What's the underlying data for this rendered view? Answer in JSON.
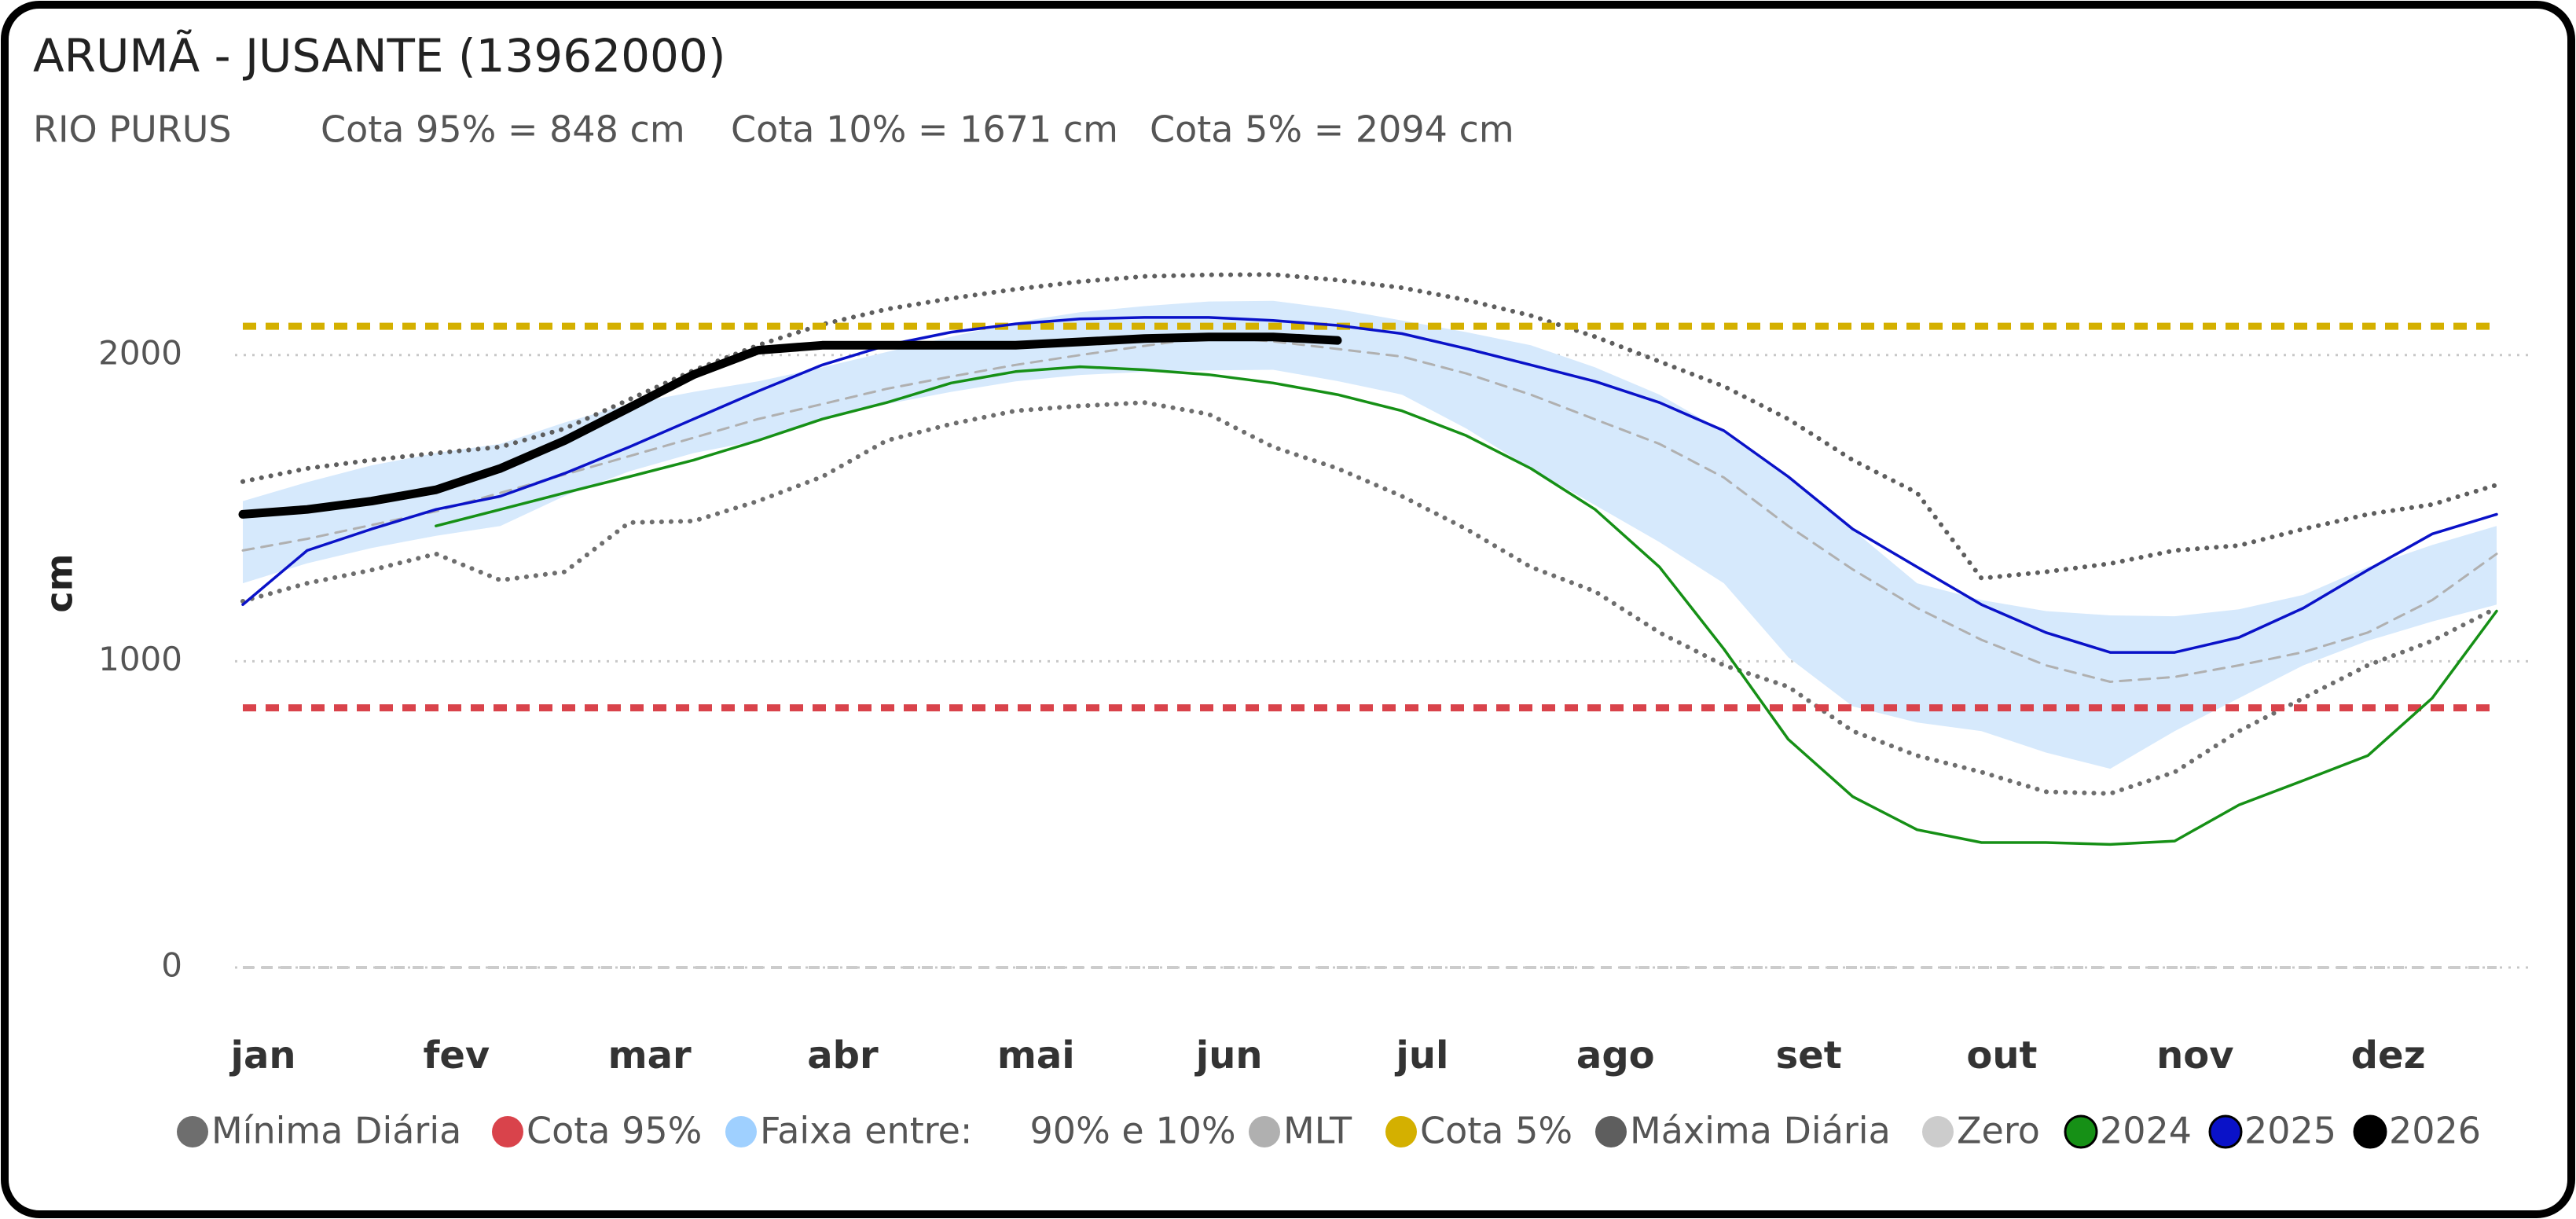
{
  "chart_data": {
    "type": "line",
    "title": "ARUMÃ - JUSANTE (13962000)",
    "subtitle": [
      "RIO PURUS",
      "Cota 95% = 848 cm",
      "Cota 10% = 1671 cm",
      "Cota 5% = 2094 cm"
    ],
    "y_label": "cm",
    "categories": [
      "jan",
      null,
      null,
      "fev",
      null,
      null,
      "mar",
      null,
      null,
      "abr",
      null,
      null,
      "mai",
      null,
      null,
      "jun",
      null,
      null,
      "jul",
      null,
      null,
      "ago",
      null,
      null,
      "set",
      null,
      null,
      "out",
      null,
      null,
      "nov",
      null,
      null,
      "dez",
      null,
      null
    ],
    "ylim": [
      0,
      2500
    ],
    "yticks": [
      0,
      1000,
      2000
    ],
    "grid": true,
    "series": [
      {
        "name": "Mínima Diária",
        "color": "#6e6e6e",
        "line_style": "dotted",
        "line_width": 6,
        "values": [
          1196,
          1255,
          1298,
          1351,
          1265,
          1292,
          1453,
          1458,
          1523,
          1603,
          1721,
          1775,
          1818,
          1834,
          1845,
          1807,
          1700,
          1630,
          1539,
          1432,
          1308,
          1228,
          1094,
          987,
          917,
          772,
          692,
          638,
          574,
          568,
          638,
          772,
          880,
          987,
          1067,
          1174
        ]
      },
      {
        "name": "Cota 95%",
        "color": "#d9434b",
        "line_style": "dashed",
        "line_width": 9,
        "value": 848
      },
      {
        "name": "Faixa entre:     90% e 10%",
        "color": "#d6e9fc",
        "line_style": "band",
        "line_width": 0,
        "high": [
          1523,
          1585,
          1640,
          1680,
          1710,
          1780,
          1840,
          1880,
          1914,
          1960,
          2010,
          2060,
          2107,
          2140,
          2160,
          2175,
          2177,
          2150,
          2113,
          2075,
          2032,
          1960,
          1871,
          1750,
          1603,
          1430,
          1255,
          1200,
          1164,
          1150,
          1147,
          1170,
          1217,
          1308,
          1380,
          1442
        ],
        "low": [
          1255,
          1320,
          1370,
          1410,
          1442,
          1540,
          1620,
          1680,
          1721,
          1790,
          1840,
          1880,
          1914,
          1935,
          1945,
          1950,
          1952,
          1915,
          1871,
          1760,
          1630,
          1510,
          1389,
          1255,
          1013,
          853,
          800,
          772,
          702,
          649,
          772,
          880,
          987,
          1067,
          1130,
          1185
        ]
      },
      {
        "name": "MLT",
        "color": "#b0b0b0",
        "line_style": "dashed-thin",
        "line_width": 3,
        "values": [
          1362,
          1400,
          1445,
          1490,
          1550,
          1610,
          1670,
          1730,
          1791,
          1840,
          1890,
          1930,
          1968,
          2000,
          2030,
          2059,
          2045,
          2020,
          1995,
          1940,
          1871,
          1790,
          1710,
          1600,
          1442,
          1300,
          1174,
          1070,
          987,
          933,
          949,
          987,
          1030,
          1094,
          1200,
          1351
        ]
      },
      {
        "name": "Cota 5%",
        "color": "#d4b000",
        "line_style": "dashed",
        "line_width": 9,
        "value": 2094
      },
      {
        "name": "Máxima Diária",
        "color": "#5e5e5e",
        "line_style": "dotted",
        "line_width": 6,
        "values": [
          1587,
          1630,
          1657,
          1680,
          1700,
          1760,
          1855,
          1950,
          2032,
          2100,
          2150,
          2185,
          2215,
          2240,
          2257,
          2262,
          2263,
          2245,
          2220,
          2180,
          2129,
          2060,
          1979,
          1898,
          1791,
          1657,
          1550,
          1271,
          1292,
          1319,
          1362,
          1378,
          1432,
          1480,
          1512,
          1576
        ]
      },
      {
        "name": "Zero",
        "color": "#cccccc",
        "line_style": "dashed-thin",
        "line_width": 4,
        "value": 0
      },
      {
        "name": "2024",
        "color": "#169016",
        "line_style": "solid",
        "line_width": 3.5,
        "values": [
          null,
          null,
          null,
          1442,
          1496,
          1550,
          1603,
          1657,
          1721,
          1791,
          1845,
          1909,
          1946,
          1962,
          1952,
          1936,
          1909,
          1871,
          1818,
          1737,
          1630,
          1496,
          1308,
          1040,
          745,
          558,
          450,
          408,
          408,
          402,
          413,
          531,
          611,
          692,
          880,
          1164
        ]
      },
      {
        "name": "2025",
        "color": "#0a12c8",
        "line_style": "solid",
        "line_width": 3.5,
        "values": [
          1185,
          1362,
          1432,
          1496,
          1539,
          1614,
          1700,
          1791,
          1882,
          1968,
          2032,
          2075,
          2102,
          2118,
          2123,
          2123,
          2113,
          2097,
          2070,
          2021,
          1968,
          1914,
          1845,
          1753,
          1603,
          1432,
          1308,
          1185,
          1094,
          1029,
          1029,
          1078,
          1174,
          1298,
          1416,
          1480
        ]
      },
      {
        "name": "2026",
        "color": "#000000",
        "line_style": "solid",
        "line_width": 11,
        "values": [
          1480,
          1496,
          1523,
          1560,
          1630,
          1721,
          1828,
          1936,
          2016,
          2032,
          2032,
          2032,
          2032,
          2043,
          2054,
          2059,
          2059,
          2048,
          null,
          null,
          null,
          null,
          null,
          null,
          null,
          null,
          null,
          null,
          null,
          null,
          null,
          null,
          null,
          null,
          null,
          null
        ]
      }
    ]
  }
}
